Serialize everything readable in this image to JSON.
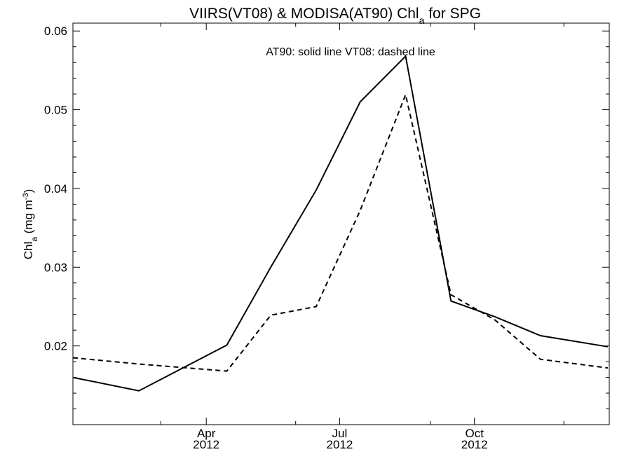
{
  "chart_data": {
    "type": "line",
    "title_main": "VIIRS(VT08) & MODISA(AT90)  Chl",
    "title_sub": "a",
    "title_end": " for SPG",
    "ylabel_main": "Chl",
    "ylabel_sub": "a",
    "ylabel_unit": " (mg m",
    "ylabel_exp": "-3",
    "ylabel_close": ")",
    "annotation": "AT90: solid line   VT08: dashed line",
    "x_axis": {
      "range": [
        "2012-01-01",
        "2012-12-31"
      ],
      "ticks": [
        {
          "date": "2012-04-01",
          "label": "Apr",
          "year": "2012"
        },
        {
          "date": "2012-07-01",
          "label": "Jul",
          "year": "2012"
        },
        {
          "date": "2012-10-01",
          "label": "Oct",
          "year": "2012"
        }
      ],
      "minor_ticks": [
        "2012-03-01",
        "2012-06-01",
        "2012-09-01",
        "2012-12-01"
      ]
    },
    "y_axis": {
      "range": [
        0.01,
        0.061
      ],
      "ticks": [
        0.02,
        0.03,
        0.04,
        0.05,
        0.06
      ],
      "tick_labels": [
        "0.02",
        "0.03",
        "0.04",
        "0.05",
        "0.06"
      ]
    },
    "series": [
      {
        "name": "AT90",
        "style": "solid",
        "points": [
          {
            "date": "2012-01-01",
            "y": 0.016
          },
          {
            "date": "2012-02-15",
            "y": 0.0143
          },
          {
            "date": "2012-04-15",
            "y": 0.0201
          },
          {
            "date": "2012-05-15",
            "y": 0.03
          },
          {
            "date": "2012-06-15",
            "y": 0.0398
          },
          {
            "date": "2012-07-15",
            "y": 0.051
          },
          {
            "date": "2012-08-15",
            "y": 0.0568
          },
          {
            "date": "2012-09-15",
            "y": 0.0257
          },
          {
            "date": "2012-10-15",
            "y": 0.0237
          },
          {
            "date": "2012-11-15",
            "y": 0.0213
          },
          {
            "date": "2012-12-31",
            "y": 0.0199
          }
        ]
      },
      {
        "name": "VT08",
        "style": "dashed",
        "points": [
          {
            "date": "2012-01-01",
            "y": 0.0185
          },
          {
            "date": "2012-02-15",
            "y": 0.0177
          },
          {
            "date": "2012-04-15",
            "y": 0.0168
          },
          {
            "date": "2012-05-15",
            "y": 0.0239
          },
          {
            "date": "2012-06-15",
            "y": 0.025
          },
          {
            "date": "2012-07-15",
            "y": 0.0372
          },
          {
            "date": "2012-08-15",
            "y": 0.0519
          },
          {
            "date": "2012-09-15",
            "y": 0.0265
          },
          {
            "date": "2012-10-15",
            "y": 0.0233
          },
          {
            "date": "2012-11-15",
            "y": 0.0183
          },
          {
            "date": "2012-12-31",
            "y": 0.0172
          }
        ]
      }
    ]
  }
}
